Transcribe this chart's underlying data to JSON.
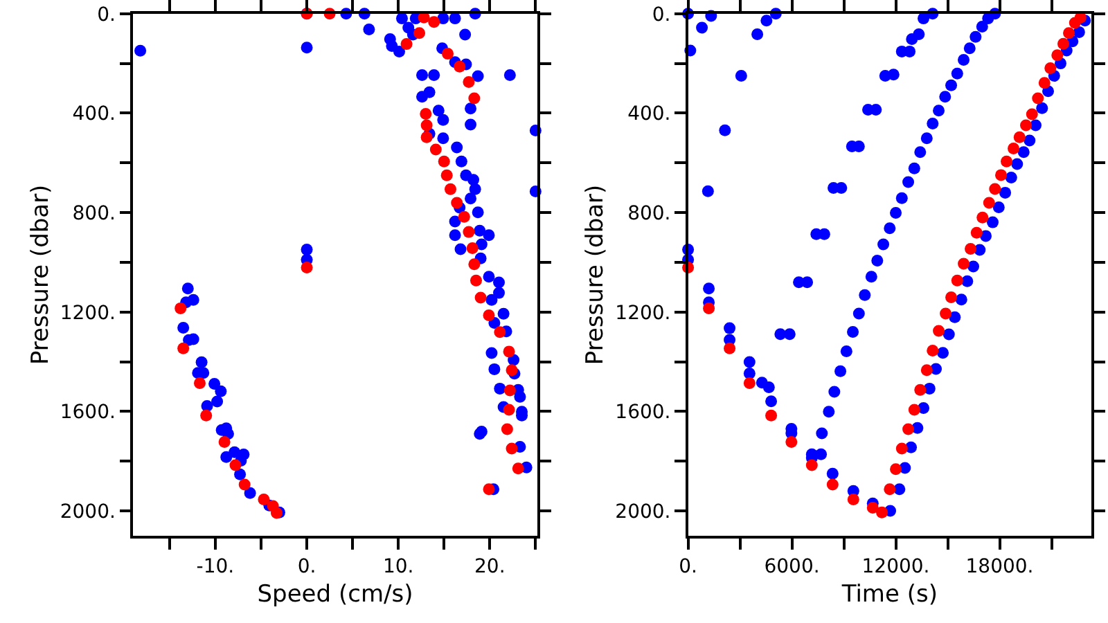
{
  "chart_data": [
    {
      "type": "scatter",
      "xlabel": "Speed (cm/s)",
      "ylabel": "Pressure (dbar)",
      "marker": "circle",
      "grid": false,
      "xlim": [
        -19,
        25.2
      ],
      "ylim": [
        2100,
        0
      ],
      "xticks": [
        {
          "value": -15,
          "label": null
        },
        {
          "value": -10,
          "label": "-10."
        },
        {
          "value": -5,
          "label": null
        },
        {
          "value": 0,
          "label": "0."
        },
        {
          "value": 5,
          "label": null
        },
        {
          "value": 10,
          "label": "10."
        },
        {
          "value": 15,
          "label": null
        },
        {
          "value": 20,
          "label": "20."
        },
        {
          "value": 25,
          "label": null
        }
      ],
      "yticks": [
        {
          "value": 0,
          "label": "0."
        },
        {
          "value": 200,
          "label": null
        },
        {
          "value": 400,
          "label": "400."
        },
        {
          "value": 600,
          "label": null
        },
        {
          "value": 800,
          "label": "800."
        },
        {
          "value": 1000,
          "label": null
        },
        {
          "value": 1200,
          "label": "1200."
        },
        {
          "value": 1400,
          "label": null
        },
        {
          "value": 1600,
          "label": "1600."
        },
        {
          "value": 1800,
          "label": null
        },
        {
          "value": 2000,
          "label": "2000."
        }
      ],
      "series": [
        {
          "color": "#0000ff",
          "x": [
            -18.2,
            0,
            0,
            0,
            0,
            4.3,
            6.3,
            6.8,
            9.1,
            9.3,
            10.1,
            10.4,
            11.1,
            11.6,
            11.9,
            14.9,
            16.2,
            18.4,
            17.3,
            14.8,
            16.2,
            17.4,
            18.7,
            22.2,
            12.6,
            13.9,
            17.9,
            17.9,
            13.4,
            12.6,
            14.4,
            14.9,
            13.4,
            14.9,
            25,
            25,
            16.4,
            16.9,
            17.4,
            18.2,
            18.4,
            17.9,
            16.7,
            16.2,
            16.2,
            16.8,
            18.7,
            18.9,
            19.1,
            19.9,
            19,
            19.9,
            21,
            21,
            20.2,
            21.5,
            20.5,
            21.8,
            20.2,
            20.5,
            22.6,
            22.7,
            21.1,
            23.1,
            23.3,
            21.5,
            23.5,
            23.5,
            18.9,
            19.1,
            23.3,
            24,
            20.4,
            -13,
            -13.2,
            -12.4,
            -13.5,
            -12.9,
            -12.4,
            -11.5,
            -11.9,
            -11.3,
            -10.1,
            -9.4,
            -9.8,
            -10.9,
            -9.3,
            -8.8,
            -8.6,
            -8.8,
            -7.9,
            -6.9,
            -7.2,
            -7.3,
            -6.2,
            -4.1,
            -3
          ],
          "values": [
            149,
            136,
            949,
            990,
            0,
            0,
            0,
            63,
            102,
            130,
            152,
            19,
            56,
            84,
            19,
            19,
            19,
            0,
            84,
            139,
            195,
            204,
            251,
            247,
            247,
            247,
            381,
            446,
            316,
            334,
            390,
            427,
            483,
            501,
            470,
            715,
            538,
            594,
            650,
            668,
            706,
            743,
            780,
            836,
            891,
            947,
            799,
            873,
            928,
            891,
            984,
            1058,
            1081,
            1123,
            1151,
            1207,
            1244,
            1278,
            1365,
            1430,
            1393,
            1448,
            1508,
            1513,
            1541,
            1582,
            1601,
            1616,
            1690,
            1681,
            1742,
            1825,
            1913,
            1105,
            1161,
            1151,
            1263,
            1313,
            1309,
            1402,
            1445,
            1445,
            1489,
            1519,
            1560,
            1578,
            1675,
            1668,
            1690,
            1783,
            1764,
            1773,
            1798,
            1853,
            1928,
            1978,
            2006
          ]
        },
        {
          "color": "#ff0000",
          "x": [
            12.8,
            13.9,
            12.3,
            10.9,
            15.4,
            16.7,
            17.7,
            18.3,
            13,
            13.1,
            13.1,
            14.1,
            15,
            15.3,
            15.7,
            16.4,
            17.2,
            17.7,
            18.1,
            18.3,
            18.5,
            19,
            19.9,
            21.1,
            22.1,
            22.4,
            22.2,
            22.1,
            21.9,
            22.4,
            23.1,
            19.9,
            -13.8,
            -13.5,
            -11.7,
            -11,
            -9,
            -7.8,
            -6.8,
            -4.7,
            -3.7,
            -3.3,
            0,
            0,
            2.5
          ],
          "values": [
            15,
            33,
            78,
            122,
            161,
            213,
            275,
            340,
            403,
            449,
            497,
            546,
            594,
            650,
            706,
            761,
            817,
            878,
            943,
            1008,
            1073,
            1142,
            1213,
            1281,
            1359,
            1434,
            1515,
            1593,
            1671,
            1749,
            1829,
            1913,
            1185,
            1346,
            1486,
            1616,
            1723,
            1816,
            1894,
            1954,
            1980,
            2008,
            1021,
            0,
            0
          ]
        }
      ]
    },
    {
      "type": "scatter",
      "xlabel": "Time (s)",
      "ylabel": "Pressure (dbar)",
      "marker": "circle",
      "grid": false,
      "xlim": [
        0,
        23300
      ],
      "ylim": [
        2100,
        0
      ],
      "xticks": [
        {
          "value": 0,
          "label": "0."
        },
        {
          "value": 3000,
          "label": null
        },
        {
          "value": 6000,
          "label": "6000."
        },
        {
          "value": 9000,
          "label": null
        },
        {
          "value": 12000,
          "label": "12000."
        },
        {
          "value": 15000,
          "label": null
        },
        {
          "value": 18000,
          "label": "18000."
        },
        {
          "value": 21000,
          "label": null
        }
      ],
      "yticks": [
        {
          "value": 0,
          "label": "0."
        },
        {
          "value": 200,
          "label": null
        },
        {
          "value": 400,
          "label": "400."
        },
        {
          "value": 600,
          "label": null
        },
        {
          "value": 800,
          "label": "800."
        },
        {
          "value": 1000,
          "label": null
        },
        {
          "value": 1200,
          "label": "1200."
        },
        {
          "value": 1400,
          "label": null
        },
        {
          "value": 1600,
          "label": "1600."
        },
        {
          "value": 1800,
          "label": null
        },
        {
          "value": 2000,
          "label": "2000."
        }
      ],
      "series": [
        {
          "color": "#0000ff",
          "x": [
            12210,
            12530,
            12880,
            13250,
            13600,
            13950,
            14320,
            14720,
            15070,
            15410,
            15790,
            16130,
            16480,
            16850,
            17200,
            17600,
            17950,
            18320,
            18670,
            19010,
            19390,
            19730,
            20080,
            20450,
            20800,
            21150,
            21520,
            21870,
            22210,
            22590,
            22930,
            11680,
            10670,
            9550,
            8350,
            7680,
            7730,
            8130,
            8450,
            8800,
            9150,
            9520,
            9870,
            10210,
            10590,
            10930,
            11280,
            11650,
            12000,
            12350,
            12720,
            13070,
            13410,
            13790,
            14130,
            14480,
            14850,
            15200,
            15550,
            15920,
            16270,
            16610,
            16990,
            17330,
            17730,
            0,
            0,
            1200,
            1200,
            2400,
            2400,
            3550,
            3550,
            4270,
            4670,
            4800,
            5970,
            5970,
            7150,
            7150,
            130,
            800,
            1330,
            4000,
            4530,
            5070,
            3070,
            2130,
            1150,
            5330,
            5870,
            6400,
            6880,
            7410,
            7870,
            8400,
            8850,
            9470,
            9870,
            10400,
            10850,
            11390,
            11870,
            12350,
            12800,
            12930,
            13330,
            13600,
            14130,
            0
          ],
          "values": [
            1913,
            1827,
            1744,
            1666,
            1586,
            1508,
            1429,
            1364,
            1290,
            1221,
            1150,
            1076,
            1017,
            950,
            894,
            839,
            779,
            720,
            659,
            605,
            557,
            510,
            449,
            380,
            312,
            250,
            200,
            148,
            111,
            74,
            28,
            2000,
            1970,
            1920,
            1850,
            1772,
            1688,
            1601,
            1521,
            1438,
            1358,
            1280,
            1206,
            1132,
            1058,
            993,
            928,
            863,
            801,
            742,
            677,
            622,
            557,
            501,
            442,
            390,
            334,
            288,
            241,
            186,
            139,
            93,
            52,
            19,
            0,
            949,
            990,
            1105,
            1161,
            1265,
            1312,
            1401,
            1447,
            1484,
            1503,
            1559,
            1670,
            1688,
            1772,
            1787,
            148,
            56,
            9,
            83,
            28,
            0,
            250,
            469,
            714,
            1289,
            1289,
            1080,
            1080,
            887,
            887,
            701,
            701,
            534,
            534,
            386,
            386,
            250,
            245,
            152,
            152,
            102,
            83,
            19,
            0,
            0
          ]
        },
        {
          "color": "#ff0000",
          "x": [
            0,
            1200,
            2400,
            3550,
            4800,
            5970,
            7150,
            8350,
            9550,
            10670,
            11200,
            11650,
            12000,
            12350,
            12720,
            13070,
            13410,
            13790,
            14130,
            14480,
            14880,
            15200,
            15550,
            15920,
            16320,
            16670,
            17010,
            17390,
            17730,
            18080,
            18400,
            18800,
            19150,
            19520,
            19870,
            20210,
            20590,
            20930,
            21330,
            21680,
            22000,
            22350,
            22670
          ],
          "values": [
            1021,
            1185,
            1346,
            1486,
            1616,
            1723,
            1816,
            1894,
            1954,
            1987,
            2006,
            1913,
            1832,
            1749,
            1671,
            1593,
            1513,
            1434,
            1355,
            1276,
            1206,
            1141,
            1073,
            1006,
            946,
            881,
            820,
            761,
            705,
            649,
            594,
            542,
            497,
            449,
            404,
            340,
            278,
            219,
            167,
            121,
            78,
            37,
            15
          ]
        }
      ]
    }
  ]
}
